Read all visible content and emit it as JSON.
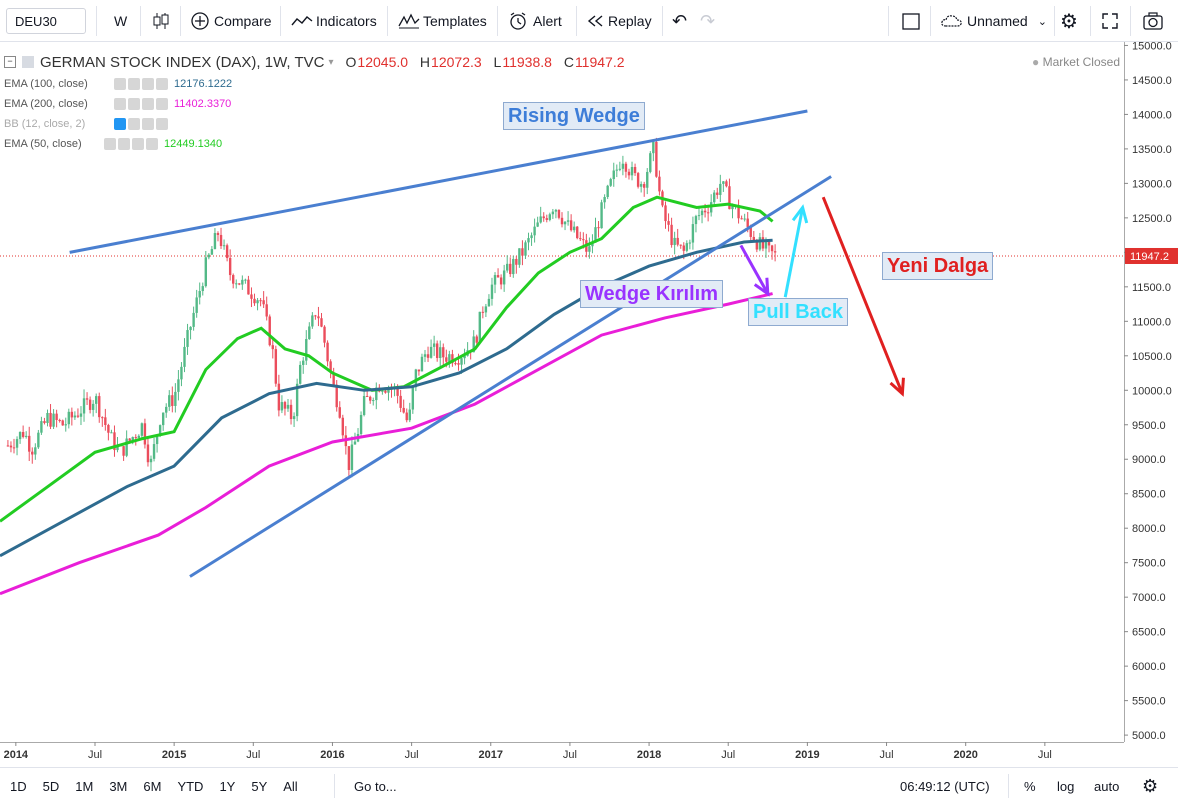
{
  "toolbar": {
    "symbol": "DEU30",
    "interval": "W",
    "compare": "Compare",
    "indicators": "Indicators",
    "templates": "Templates",
    "alert": "Alert",
    "replay": "Replay",
    "layout_name": "Unnamed"
  },
  "legend": {
    "title": "GERMAN STOCK INDEX (DAX), 1W, TVC",
    "open_label": "O",
    "open": "12045.0",
    "high_label": "H",
    "high": "12072.3",
    "low_label": "L",
    "low": "11938.8",
    "close_label": "C",
    "close": "11947.2",
    "market_status": "Market Closed",
    "indicators": [
      {
        "name": "EMA (100, close)",
        "value": "12176.1222",
        "color": "#2e6b8f"
      },
      {
        "name": "EMA (200, close)",
        "value": "11402.3370",
        "color": "#e91ed8"
      },
      {
        "name": "BB (12, close, 2)",
        "value": "",
        "color": "#999999"
      },
      {
        "name": "EMA (50, close)",
        "value": "12449.1340",
        "color": "#22cc22"
      }
    ]
  },
  "annotations": {
    "rising_wedge": "Rising Wedge",
    "wedge_break": "Wedge Kırılım",
    "pull_back": "Pull Back",
    "new_wave": "Yeni Dalga"
  },
  "bottombar": {
    "ranges": [
      "1D",
      "5D",
      "1M",
      "3M",
      "6M",
      "YTD",
      "1Y",
      "5Y",
      "All"
    ],
    "goto": "Go to...",
    "time": "06:49:12 (UTC)",
    "percent": "%",
    "log": "log",
    "auto": "auto"
  },
  "chart_data": {
    "type": "candlestick",
    "symbol": "DEU30",
    "interval": "1W",
    "last_price": "11947.2",
    "y_ticks": [
      5000,
      5500,
      6000,
      6500,
      7000,
      7500,
      8000,
      8500,
      9000,
      9500,
      10000,
      10500,
      11000,
      11500,
      12000,
      12500,
      13000,
      13500,
      14000,
      14500,
      15000
    ],
    "ylim": [
      4900,
      15050
    ],
    "x_ticks": [
      "2014",
      "Jul",
      "2015",
      "Jul",
      "2016",
      "Jul",
      "2017",
      "Jul",
      "2018",
      "Jul",
      "2019",
      "Jul",
      "2020",
      "Jul"
    ],
    "x_tick_years": [
      2014.0,
      2014.5,
      2015.0,
      2015.5,
      2016.0,
      2016.5,
      2017.0,
      2017.5,
      2018.0,
      2018.5,
      2019.0,
      2019.5,
      2020.0,
      2020.5
    ],
    "xlim": [
      2013.9,
      2021.0
    ],
    "price_path": [
      [
        2013.95,
        9200
      ],
      [
        2014.05,
        9400
      ],
      [
        2014.1,
        9150
      ],
      [
        2014.2,
        9600
      ],
      [
        2014.3,
        9500
      ],
      [
        2014.4,
        9700
      ],
      [
        2014.5,
        9900
      ],
      [
        2014.6,
        9300
      ],
      [
        2014.66,
        9100
      ],
      [
        2014.8,
        9500
      ],
      [
        2014.85,
        8900
      ],
      [
        2014.92,
        9700
      ],
      [
        2015.0,
        9900
      ],
      [
        2015.1,
        10900
      ],
      [
        2015.2,
        11800
      ],
      [
        2015.28,
        12300
      ],
      [
        2015.35,
        11700
      ],
      [
        2015.45,
        11500
      ],
      [
        2015.55,
        11300
      ],
      [
        2015.62,
        10600
      ],
      [
        2015.66,
        9800
      ],
      [
        2015.75,
        9600
      ],
      [
        2015.8,
        10400
      ],
      [
        2015.85,
        10800
      ],
      [
        2015.9,
        11200
      ],
      [
        2015.95,
        10700
      ],
      [
        2016.0,
        10100
      ],
      [
        2016.05,
        9700
      ],
      [
        2016.1,
        8900
      ],
      [
        2016.15,
        9300
      ],
      [
        2016.2,
        9800
      ],
      [
        2016.3,
        10100
      ],
      [
        2016.4,
        10000
      ],
      [
        2016.48,
        9500
      ],
      [
        2016.52,
        10200
      ],
      [
        2016.6,
        10600
      ],
      [
        2016.7,
        10500
      ],
      [
        2016.8,
        10500
      ],
      [
        2016.9,
        10700
      ],
      [
        2016.95,
        11200
      ],
      [
        2017.0,
        11500
      ],
      [
        2017.1,
        11700
      ],
      [
        2017.2,
        12000
      ],
      [
        2017.3,
        12400
      ],
      [
        2017.4,
        12700
      ],
      [
        2017.48,
        12400
      ],
      [
        2017.55,
        12200
      ],
      [
        2017.62,
        12000
      ],
      [
        2017.7,
        12600
      ],
      [
        2017.76,
        13000
      ],
      [
        2017.83,
        13400
      ],
      [
        2017.9,
        13100
      ],
      [
        2017.96,
        13000
      ],
      [
        2018.03,
        13500
      ],
      [
        2018.08,
        12600
      ],
      [
        2018.16,
        12100
      ],
      [
        2018.22,
        12000
      ],
      [
        2018.3,
        12500
      ],
      [
        2018.38,
        12700
      ],
      [
        2018.45,
        13000
      ],
      [
        2018.52,
        12700
      ],
      [
        2018.58,
        12500
      ],
      [
        2018.64,
        12300
      ],
      [
        2018.7,
        12100
      ],
      [
        2018.75,
        12000
      ],
      [
        2018.8,
        11947
      ]
    ],
    "series": [
      {
        "name": "EMA (50, close)",
        "color": "#22cc22",
        "points": [
          [
            2013.9,
            8100
          ],
          [
            2014.2,
            8600
          ],
          [
            2014.5,
            9100
          ],
          [
            2014.8,
            9300
          ],
          [
            2015.0,
            9400
          ],
          [
            2015.2,
            10300
          ],
          [
            2015.4,
            10750
          ],
          [
            2015.55,
            10900
          ],
          [
            2015.7,
            10600
          ],
          [
            2015.85,
            10500
          ],
          [
            2016.0,
            10250
          ],
          [
            2016.25,
            10000
          ],
          [
            2016.45,
            10050
          ],
          [
            2016.7,
            10350
          ],
          [
            2016.9,
            10600
          ],
          [
            2017.1,
            11200
          ],
          [
            2017.3,
            11700
          ],
          [
            2017.5,
            12000
          ],
          [
            2017.7,
            12200
          ],
          [
            2017.9,
            12650
          ],
          [
            2018.05,
            12800
          ],
          [
            2018.3,
            12650
          ],
          [
            2018.5,
            12700
          ],
          [
            2018.7,
            12600
          ],
          [
            2018.78,
            12449
          ]
        ]
      },
      {
        "name": "EMA (100, close)",
        "color": "#2e6b8f",
        "points": [
          [
            2013.9,
            7600
          ],
          [
            2014.3,
            8100
          ],
          [
            2014.7,
            8600
          ],
          [
            2015.0,
            8900
          ],
          [
            2015.3,
            9600
          ],
          [
            2015.6,
            9950
          ],
          [
            2015.9,
            10100
          ],
          [
            2016.2,
            10000
          ],
          [
            2016.5,
            10050
          ],
          [
            2016.8,
            10250
          ],
          [
            2017.1,
            10600
          ],
          [
            2017.4,
            11100
          ],
          [
            2017.7,
            11500
          ],
          [
            2018.0,
            11800
          ],
          [
            2018.3,
            12000
          ],
          [
            2018.6,
            12150
          ],
          [
            2018.78,
            12176
          ]
        ]
      },
      {
        "name": "EMA (200, close)",
        "color": "#e91ed8",
        "points": [
          [
            2013.9,
            7050
          ],
          [
            2014.4,
            7500
          ],
          [
            2014.9,
            7900
          ],
          [
            2015.2,
            8300
          ],
          [
            2015.6,
            8900
          ],
          [
            2016.0,
            9250
          ],
          [
            2016.5,
            9450
          ],
          [
            2016.9,
            9800
          ],
          [
            2017.3,
            10300
          ],
          [
            2017.7,
            10800
          ],
          [
            2018.1,
            11050
          ],
          [
            2018.5,
            11250
          ],
          [
            2018.78,
            11402
          ]
        ]
      }
    ],
    "trendlines": [
      {
        "name": "wedge-upper",
        "color": "#4a7fd0",
        "from": [
          2014.34,
          12000
        ],
        "to": [
          2019.0,
          14050
        ]
      },
      {
        "name": "wedge-lower",
        "color": "#4a7fd0",
        "from": [
          2015.1,
          7300
        ],
        "to": [
          2019.15,
          13100
        ]
      }
    ],
    "arrows": [
      {
        "name": "break-arrow",
        "color": "#9933ff",
        "from": [
          2018.58,
          12100
        ],
        "to": [
          2018.75,
          11400
        ]
      },
      {
        "name": "pullback-arrow",
        "color": "#33e0ff",
        "from": [
          2018.86,
          11350
        ],
        "to": [
          2018.97,
          12650
        ]
      },
      {
        "name": "new-wave-arrow",
        "color": "#e02020",
        "from": [
          2019.1,
          12800
        ],
        "to": [
          2019.6,
          9950
        ]
      }
    ]
  }
}
